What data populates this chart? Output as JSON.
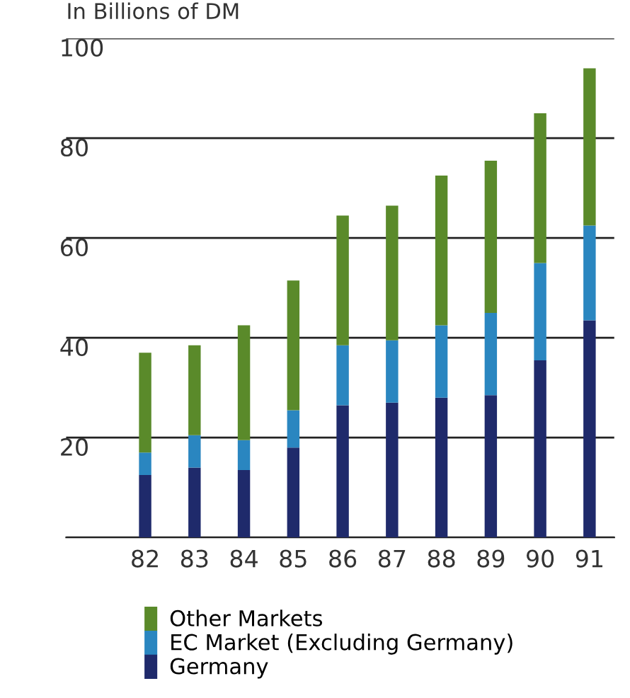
{
  "chart_data": {
    "type": "bar",
    "stacked": true,
    "ylabel": "In Billions of DM",
    "categories": [
      "82",
      "83",
      "84",
      "85",
      "86",
      "87",
      "88",
      "89",
      "90",
      "91"
    ],
    "series": [
      {
        "name": "Germany",
        "color": "#1f2a6b",
        "values": [
          12.5,
          14,
          13.5,
          18,
          26.5,
          27,
          28,
          28.5,
          35.5,
          43.5
        ]
      },
      {
        "name": "EC Market (Excluding Germany)",
        "color": "#2a86c0",
        "values": [
          4.5,
          6.5,
          6,
          7.5,
          12,
          12.5,
          14.5,
          16.5,
          19.5,
          19
        ]
      },
      {
        "name": "Other Markets",
        "color": "#5a8a2a",
        "values": [
          20,
          18,
          23,
          26,
          26,
          27,
          30,
          30.5,
          30,
          31.5
        ]
      }
    ],
    "ylim": [
      0,
      100
    ],
    "yticks": [
      {
        "value": 0,
        "label": null
      },
      20,
      40,
      60,
      80,
      100
    ],
    "grid": "y",
    "legend": "bottom"
  }
}
